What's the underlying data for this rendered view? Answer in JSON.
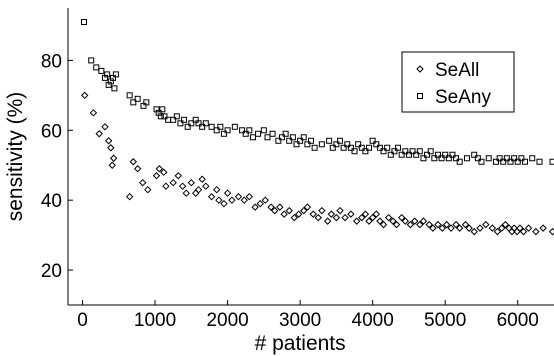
{
  "chart_data": {
    "type": "scatter",
    "xlabel": "# patients",
    "ylabel": "sensitivity (%)",
    "xlim": [
      -200,
      6500
    ],
    "ylim": [
      10,
      95
    ],
    "x_ticks": [
      0,
      1000,
      2000,
      3000,
      4000,
      5000,
      6000
    ],
    "y_ticks": [
      20,
      40,
      60,
      80
    ],
    "grid": false,
    "legend_position": "top-right",
    "series": [
      {
        "name": "SeAll",
        "marker": "diamond",
        "points": [
          [
            30,
            70
          ],
          [
            150,
            65
          ],
          [
            230,
            59
          ],
          [
            310,
            61
          ],
          [
            360,
            57
          ],
          [
            390,
            55
          ],
          [
            410,
            50
          ],
          [
            430,
            52
          ],
          [
            650,
            41
          ],
          [
            700,
            51
          ],
          [
            760,
            49
          ],
          [
            830,
            45
          ],
          [
            900,
            43
          ],
          [
            1020,
            47
          ],
          [
            1060,
            49
          ],
          [
            1120,
            48
          ],
          [
            1150,
            44
          ],
          [
            1250,
            45
          ],
          [
            1320,
            47
          ],
          [
            1380,
            44
          ],
          [
            1430,
            42
          ],
          [
            1500,
            45
          ],
          [
            1560,
            42
          ],
          [
            1600,
            43
          ],
          [
            1650,
            46
          ],
          [
            1700,
            44
          ],
          [
            1780,
            41
          ],
          [
            1850,
            43
          ],
          [
            1880,
            40
          ],
          [
            1950,
            39
          ],
          [
            2000,
            42
          ],
          [
            2060,
            40
          ],
          [
            2150,
            41
          ],
          [
            2230,
            40
          ],
          [
            2300,
            41
          ],
          [
            2380,
            38
          ],
          [
            2450,
            39
          ],
          [
            2520,
            40
          ],
          [
            2600,
            38
          ],
          [
            2650,
            37
          ],
          [
            2720,
            38
          ],
          [
            2780,
            36
          ],
          [
            2850,
            37
          ],
          [
            2920,
            35
          ],
          [
            2980,
            36
          ],
          [
            3050,
            37
          ],
          [
            3100,
            38
          ],
          [
            3180,
            36
          ],
          [
            3250,
            35
          ],
          [
            3300,
            37
          ],
          [
            3380,
            34
          ],
          [
            3430,
            36
          ],
          [
            3500,
            35
          ],
          [
            3550,
            37
          ],
          [
            3620,
            35
          ],
          [
            3700,
            36
          ],
          [
            3780,
            34
          ],
          [
            3850,
            35
          ],
          [
            3900,
            36
          ],
          [
            3950,
            34
          ],
          [
            4000,
            35
          ],
          [
            4050,
            36
          ],
          [
            4100,
            34
          ],
          [
            4150,
            33
          ],
          [
            4220,
            35
          ],
          [
            4280,
            34
          ],
          [
            4330,
            33
          ],
          [
            4400,
            35
          ],
          [
            4450,
            34
          ],
          [
            4520,
            33
          ],
          [
            4580,
            34
          ],
          [
            4650,
            33
          ],
          [
            4700,
            34
          ],
          [
            4780,
            33
          ],
          [
            4830,
            32
          ],
          [
            4900,
            33
          ],
          [
            4960,
            32
          ],
          [
            5020,
            33
          ],
          [
            5080,
            32
          ],
          [
            5150,
            33
          ],
          [
            5200,
            32
          ],
          [
            5280,
            33
          ],
          [
            5330,
            32
          ],
          [
            5400,
            31
          ],
          [
            5480,
            32
          ],
          [
            5560,
            33
          ],
          [
            5650,
            32
          ],
          [
            5720,
            31
          ],
          [
            5780,
            32
          ],
          [
            5830,
            33
          ],
          [
            5880,
            32
          ],
          [
            5920,
            31
          ],
          [
            5950,
            32
          ],
          [
            5990,
            31
          ],
          [
            6030,
            32
          ],
          [
            6080,
            31
          ],
          [
            6150,
            32
          ],
          [
            6250,
            31
          ],
          [
            6350,
            32
          ],
          [
            6480,
            31
          ]
        ]
      },
      {
        "name": "SeAny",
        "marker": "square",
        "points": [
          [
            20,
            91
          ],
          [
            120,
            80
          ],
          [
            190,
            78
          ],
          [
            260,
            77
          ],
          [
            310,
            75
          ],
          [
            340,
            76
          ],
          [
            360,
            73
          ],
          [
            390,
            74
          ],
          [
            420,
            75
          ],
          [
            440,
            72
          ],
          [
            460,
            76
          ],
          [
            650,
            70
          ],
          [
            700,
            68
          ],
          [
            760,
            69
          ],
          [
            840,
            67
          ],
          [
            880,
            68
          ],
          [
            1020,
            66
          ],
          [
            1050,
            65
          ],
          [
            1080,
            64
          ],
          [
            1100,
            66
          ],
          [
            1130,
            64
          ],
          [
            1180,
            63
          ],
          [
            1250,
            63
          ],
          [
            1300,
            64
          ],
          [
            1350,
            62
          ],
          [
            1400,
            63
          ],
          [
            1450,
            61
          ],
          [
            1500,
            62
          ],
          [
            1560,
            63
          ],
          [
            1600,
            62
          ],
          [
            1650,
            61
          ],
          [
            1700,
            62
          ],
          [
            1780,
            61
          ],
          [
            1850,
            60
          ],
          [
            1900,
            61
          ],
          [
            1950,
            59
          ],
          [
            2000,
            60
          ],
          [
            2100,
            61
          ],
          [
            2200,
            60
          ],
          [
            2250,
            59
          ],
          [
            2300,
            60
          ],
          [
            2350,
            58
          ],
          [
            2420,
            59
          ],
          [
            2500,
            60
          ],
          [
            2550,
            58
          ],
          [
            2620,
            59
          ],
          [
            2700,
            57
          ],
          [
            2750,
            58
          ],
          [
            2800,
            59
          ],
          [
            2850,
            57
          ],
          [
            2900,
            58
          ],
          [
            2950,
            56
          ],
          [
            3000,
            57
          ],
          [
            3050,
            58
          ],
          [
            3100,
            56
          ],
          [
            3150,
            57
          ],
          [
            3200,
            55
          ],
          [
            3300,
            56
          ],
          [
            3400,
            57
          ],
          [
            3450,
            55
          ],
          [
            3500,
            56
          ],
          [
            3550,
            57
          ],
          [
            3600,
            55
          ],
          [
            3650,
            56
          ],
          [
            3700,
            55
          ],
          [
            3750,
            54
          ],
          [
            3800,
            56
          ],
          [
            3850,
            55
          ],
          [
            3900,
            54
          ],
          [
            3950,
            55
          ],
          [
            4000,
            57
          ],
          [
            4050,
            56
          ],
          [
            4100,
            55
          ],
          [
            4150,
            54
          ],
          [
            4200,
            55
          ],
          [
            4250,
            53
          ],
          [
            4300,
            54
          ],
          [
            4350,
            55
          ],
          [
            4400,
            53
          ],
          [
            4450,
            54
          ],
          [
            4500,
            53
          ],
          [
            4550,
            54
          ],
          [
            4600,
            53
          ],
          [
            4650,
            54
          ],
          [
            4700,
            52
          ],
          [
            4750,
            53
          ],
          [
            4800,
            54
          ],
          [
            4850,
            52
          ],
          [
            4900,
            53
          ],
          [
            4950,
            52
          ],
          [
            5000,
            53
          ],
          [
            5050,
            52
          ],
          [
            5100,
            53
          ],
          [
            5150,
            52
          ],
          [
            5200,
            51
          ],
          [
            5300,
            52
          ],
          [
            5400,
            53
          ],
          [
            5450,
            52
          ],
          [
            5500,
            51
          ],
          [
            5600,
            52
          ],
          [
            5700,
            51
          ],
          [
            5750,
            52
          ],
          [
            5800,
            51
          ],
          [
            5850,
            52
          ],
          [
            5900,
            51
          ],
          [
            5950,
            52
          ],
          [
            6000,
            51
          ],
          [
            6050,
            52
          ],
          [
            6100,
            51
          ],
          [
            6200,
            52
          ],
          [
            6300,
            51
          ],
          [
            6480,
            51
          ]
        ]
      }
    ]
  }
}
